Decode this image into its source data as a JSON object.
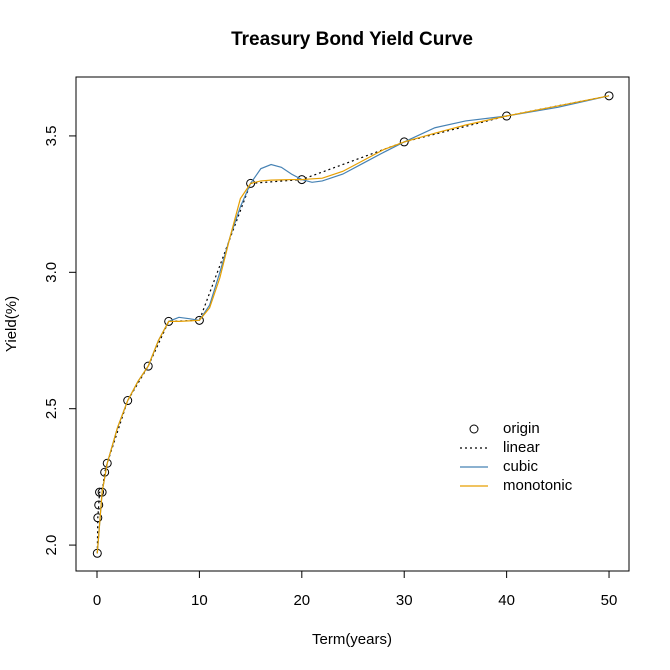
{
  "chart_data": {
    "type": "line",
    "title": "Treasury Bond Yield Curve",
    "x_label": "Term(years)",
    "y_label": "Yield(%)",
    "xlim": [
      -2.05,
      51.95
    ],
    "ylim": [
      1.905,
      3.716
    ],
    "xticks": [
      0,
      10,
      20,
      30,
      40,
      50
    ],
    "yticks": [
      {
        "value": 2,
        "label": "2.0"
      },
      2.5,
      {
        "value": 3,
        "label": "3.0"
      },
      3.5
    ],
    "legend": "bottom-right",
    "series": [
      {
        "name": "origin",
        "style": "points",
        "color": "#000000",
        "x": [
          0.03,
          0.08,
          0.17,
          0.25,
          0.5,
          0.75,
          1,
          3,
          5,
          7,
          10,
          15,
          20,
          30,
          40,
          50
        ],
        "values": [
          1.97,
          2.1,
          2.147,
          2.194,
          2.194,
          2.267,
          2.3,
          2.53,
          2.656,
          2.82,
          2.824,
          3.326,
          3.34,
          3.478,
          3.573,
          3.647
        ]
      },
      {
        "name": "linear",
        "style": "dotted",
        "color": "#000000",
        "x": [
          0.03,
          0.08,
          0.17,
          0.25,
          0.5,
          0.75,
          1,
          3,
          5,
          7,
          10,
          15,
          20,
          30,
          40,
          50
        ],
        "values": [
          1.97,
          2.1,
          2.147,
          2.194,
          2.194,
          2.267,
          2.3,
          2.53,
          2.656,
          2.82,
          2.824,
          3.326,
          3.34,
          3.478,
          3.573,
          3.647
        ]
      },
      {
        "name": "cubic",
        "style": "solid",
        "color": "#4682b4",
        "x": [
          0.03,
          0.5,
          1,
          2,
          3,
          4,
          5,
          6,
          7,
          8,
          9,
          10,
          11,
          12,
          13,
          14,
          15,
          16,
          17,
          18,
          19,
          20,
          21,
          22,
          24,
          26,
          28,
          30,
          33,
          36,
          40,
          45,
          50
        ],
        "values": [
          1.97,
          2.194,
          2.3,
          2.43,
          2.53,
          2.6,
          2.656,
          2.75,
          2.82,
          2.835,
          2.83,
          2.824,
          2.88,
          3.0,
          3.13,
          3.24,
          3.326,
          3.38,
          3.395,
          3.385,
          3.36,
          3.34,
          3.33,
          3.335,
          3.36,
          3.4,
          3.44,
          3.478,
          3.53,
          3.555,
          3.573,
          3.605,
          3.647
        ]
      },
      {
        "name": "monotonic",
        "style": "solid",
        "color": "#e69f00",
        "x": [
          0.03,
          0.5,
          1,
          2,
          3,
          4,
          5,
          6,
          7,
          8,
          9,
          10,
          11,
          12,
          13,
          14,
          15,
          16,
          17,
          18,
          19,
          20,
          22,
          24,
          26,
          28,
          30,
          33,
          36,
          40,
          45,
          50
        ],
        "values": [
          1.97,
          2.194,
          2.3,
          2.43,
          2.53,
          2.6,
          2.656,
          2.75,
          2.82,
          2.82,
          2.822,
          2.824,
          2.87,
          2.98,
          3.13,
          3.27,
          3.326,
          3.335,
          3.338,
          3.339,
          3.34,
          3.34,
          3.345,
          3.37,
          3.41,
          3.45,
          3.478,
          3.51,
          3.54,
          3.573,
          3.61,
          3.647
        ]
      }
    ]
  }
}
